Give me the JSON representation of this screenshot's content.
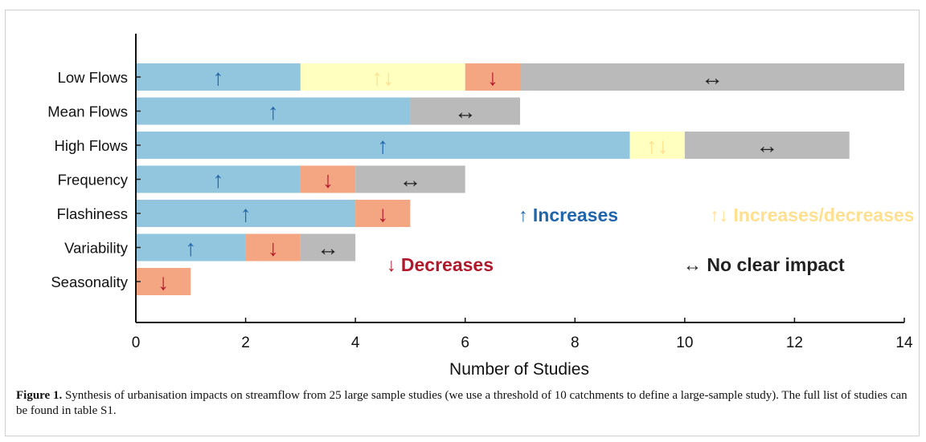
{
  "chart_data": {
    "type": "bar",
    "stacked": true,
    "orientation": "horizontal",
    "categories": [
      "Low Flows",
      "Mean Flows",
      "High Flows",
      "Frequency",
      "Flashiness",
      "Variability",
      "Seasonality"
    ],
    "series": [
      {
        "name": "Increases",
        "symbol": "↑",
        "color": "#92c5de",
        "symbol_color": "#2166ac",
        "values": [
          3,
          5,
          9,
          3,
          4,
          2,
          0
        ]
      },
      {
        "name": "Increases/decreases",
        "symbol": "↑↓",
        "color": "#ffffbf",
        "symbol_color": "#fee090",
        "values": [
          3,
          0,
          1,
          0,
          0,
          0,
          0
        ]
      },
      {
        "name": "Decreases",
        "symbol": "↓",
        "color": "#f4a582",
        "symbol_color": "#b2182b",
        "values": [
          1,
          0,
          0,
          1,
          1,
          1,
          1
        ]
      },
      {
        "name": "No clear impact",
        "symbol": "↔",
        "color": "#bababa",
        "symbol_color": "#222222",
        "values": [
          7,
          2,
          3,
          2,
          0,
          1,
          0
        ]
      }
    ],
    "xlabel": "Number of Studies",
    "ylabel": "",
    "xlim": [
      0,
      14
    ],
    "xticks": [
      0,
      2,
      4,
      6,
      8,
      10,
      12,
      14
    ],
    "grid": false
  },
  "caption": {
    "label": "Figure 1.",
    "text": " Synthesis of urbanisation impacts on streamflow from 25 large sample studies (we use a threshold of 10 catchments to define a large-sample study). The full list of studies can be found in table S1."
  }
}
